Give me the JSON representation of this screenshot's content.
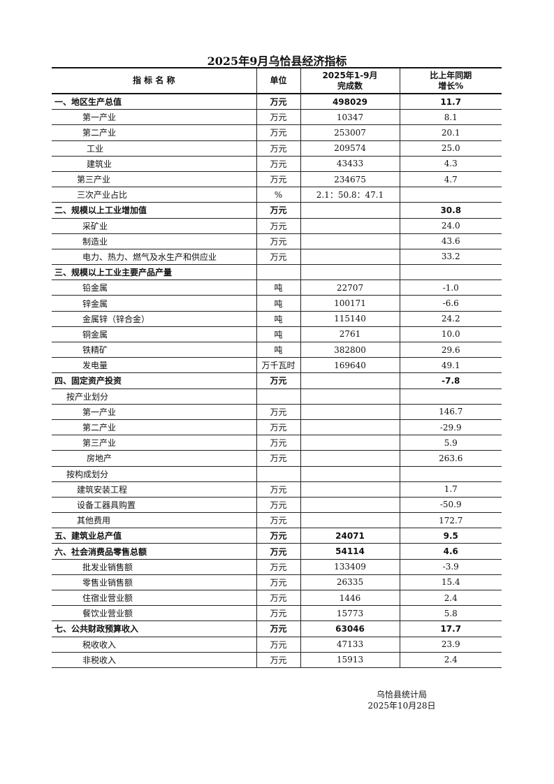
{
  "title": "2025年9月乌恰县经济指标",
  "header": {
    "name": "指 标 名 称",
    "unit": "单位",
    "value_line1": "2025年1-9月",
    "value_line2": "完成数",
    "growth_line1": "比上年同期",
    "growth_line2": "增长%"
  },
  "rows": [
    {
      "name": "一、地区生产总值",
      "unit": "万元",
      "value": "498029",
      "growth": "11.7",
      "bold": true,
      "level": 0
    },
    {
      "name": "第一产业",
      "unit": "万元",
      "value": "10347",
      "growth": "8.1",
      "level": 3
    },
    {
      "name": "第二产业",
      "unit": "万元",
      "value": "253007",
      "growth": "20.1",
      "level": 3
    },
    {
      "name": "工业",
      "unit": "万元",
      "value": "209574",
      "growth": "25.0",
      "level": 4
    },
    {
      "name": "建筑业",
      "unit": "万元",
      "value": "43433",
      "growth": "4.3",
      "level": 4
    },
    {
      "name": "第三产业",
      "unit": "万元",
      "value": "234675",
      "growth": "4.7",
      "level": 2
    },
    {
      "name": "三次产业占比",
      "unit": "%",
      "value": "2.1：50.8：47.1",
      "growth": "",
      "level": 2
    },
    {
      "name": "二、规模以上工业增加值",
      "unit": "万元",
      "value": "",
      "growth": "30.8",
      "bold": true,
      "level": 0
    },
    {
      "name": "采矿业",
      "unit": "万元",
      "value": "",
      "growth": "24.0",
      "level": 3
    },
    {
      "name": "制造业",
      "unit": "万元",
      "value": "",
      "growth": "43.6",
      "level": 3
    },
    {
      "name": "电力、热力、燃气及水生产和供应业",
      "unit": "万元",
      "value": "",
      "growth": "33.2",
      "level": 3
    },
    {
      "name": "三、规模以上工业主要产品产量",
      "unit": "",
      "value": "",
      "growth": "",
      "bold": true,
      "level": 0
    },
    {
      "name": "铅金属",
      "unit": "吨",
      "value": "22707",
      "growth": "-1.0",
      "level": 3
    },
    {
      "name": "锌金属",
      "unit": "吨",
      "value": "100171",
      "growth": "-6.6",
      "level": 3
    },
    {
      "name": "金属锌（锌合金）",
      "unit": "吨",
      "value": "115140",
      "growth": "24.2",
      "level": 3
    },
    {
      "name": "铜金属",
      "unit": "吨",
      "value": "2761",
      "growth": "10.0",
      "level": 3
    },
    {
      "name": "铁精矿",
      "unit": "吨",
      "value": "382800",
      "growth": "29.6",
      "level": 3
    },
    {
      "name": "发电量",
      "unit": "万千瓦时",
      "value": "169640",
      "growth": "49.1",
      "level": 3
    },
    {
      "name": "四、固定资产投资",
      "unit": "万元",
      "value": "",
      "growth": "-7.8",
      "bold": true,
      "level": 0
    },
    {
      "name": "按产业划分",
      "unit": "",
      "value": "",
      "growth": "",
      "level": 1
    },
    {
      "name": "第一产业",
      "unit": "万元",
      "value": "",
      "growth": "146.7",
      "level": 3
    },
    {
      "name": "第二产业",
      "unit": "万元",
      "value": "",
      "growth": "-29.9",
      "level": 3
    },
    {
      "name": "第三产业",
      "unit": "万元",
      "value": "",
      "growth": "5.9",
      "level": 3
    },
    {
      "name": "房地产",
      "unit": "万元",
      "value": "",
      "growth": "263.6",
      "level": 4
    },
    {
      "name": "按构成划分",
      "unit": "",
      "value": "",
      "growth": "",
      "level": 1
    },
    {
      "name": "建筑安装工程",
      "unit": "万元",
      "value": "",
      "growth": "1.7",
      "level": 2
    },
    {
      "name": "设备工器具购置",
      "unit": "万元",
      "value": "",
      "growth": "-50.9",
      "level": 2
    },
    {
      "name": "其他费用",
      "unit": "万元",
      "value": "",
      "growth": "172.7",
      "level": 2
    },
    {
      "name": "五、建筑业总产值",
      "unit": "万元",
      "value": "24071",
      "growth": "9.5",
      "bold": true,
      "level": 0
    },
    {
      "name": "六、社会消费品零售总额",
      "unit": "万元",
      "value": "54114",
      "growth": "4.6",
      "bold": true,
      "level": 0
    },
    {
      "name": "批发业销售额",
      "unit": "万元",
      "value": "133409",
      "growth": "-3.9",
      "level": 3
    },
    {
      "name": "零售业销售额",
      "unit": "万元",
      "value": "26335",
      "growth": "15.4",
      "level": 3
    },
    {
      "name": "住宿业营业额",
      "unit": "万元",
      "value": "1446",
      "growth": "2.4",
      "level": 3
    },
    {
      "name": "餐饮业营业额",
      "unit": "万元",
      "value": "15773",
      "growth": "5.8",
      "level": 3
    },
    {
      "name": "七、公共财政预算收入",
      "unit": "万元",
      "value": "63046",
      "growth": "17.7",
      "bold": true,
      "level": 0
    },
    {
      "name": "税收收入",
      "unit": "万元",
      "value": "47133",
      "growth": "23.9",
      "level": 3
    },
    {
      "name": "非税收入",
      "unit": "万元",
      "value": "15913",
      "growth": "2.4",
      "level": 3
    }
  ],
  "footer": {
    "issuer": "乌恰县统计局",
    "date": "2025年10月28日"
  }
}
